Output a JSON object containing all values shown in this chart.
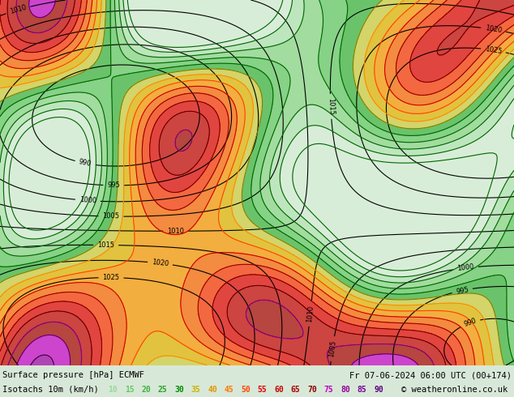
{
  "title_left": "Surface pressure [hPa] ECMWF",
  "title_right": "Fr 07-06-2024 06:00 UTC (00+174)",
  "legend_label": "Isotachs 10m (km/h)",
  "copyright": "© weatheronline.co.uk",
  "isotach_values": [
    10,
    15,
    20,
    25,
    30,
    35,
    40,
    45,
    50,
    55,
    60,
    65,
    70,
    75,
    80,
    85,
    90
  ],
  "isotach_colors": [
    "#c8f0c8",
    "#96e696",
    "#64dc64",
    "#32c832",
    "#00aa00",
    "#c8c800",
    "#e6aa00",
    "#ff8c00",
    "#ff5000",
    "#ff0000",
    "#dc0000",
    "#b40000",
    "#960000",
    "#c800c8",
    "#aa00aa",
    "#8c008c",
    "#6400c8"
  ],
  "background_color": "#e8e8e8",
  "map_background": "#c8e6c8",
  "text_color": "#000000",
  "fig_width": 6.34,
  "fig_height": 4.9,
  "dpi": 100
}
